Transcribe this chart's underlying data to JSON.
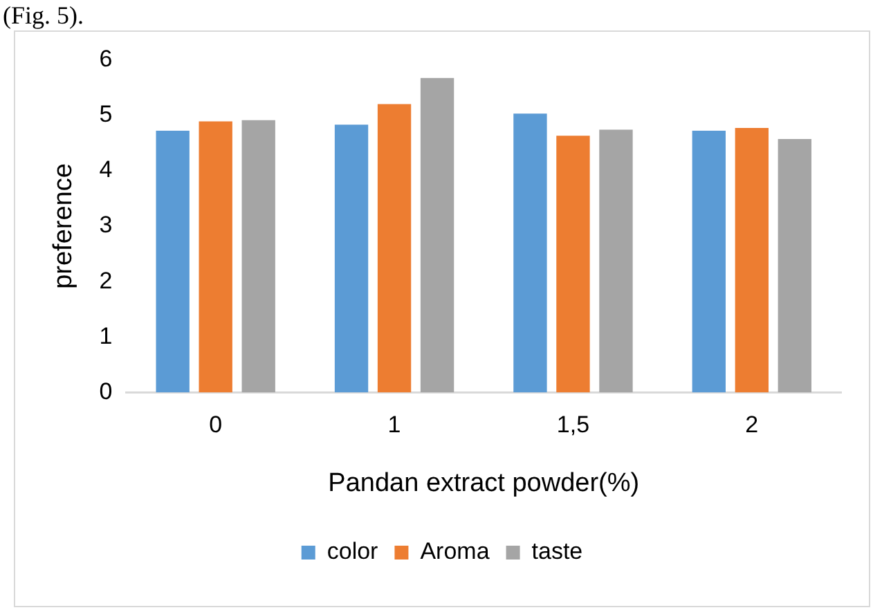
{
  "chart_data": {
    "type": "bar",
    "xlabel": "Pandan extract powder(%)",
    "ylabel": "preference",
    "categories": [
      "0",
      "1",
      "1,5",
      "2"
    ],
    "series": [
      {
        "name": "color",
        "color": "#5b9bd5",
        "values": [
          4.72,
          4.83,
          5.03,
          4.72
        ]
      },
      {
        "name": "Aroma",
        "color": "#ed7d31",
        "values": [
          4.89,
          5.2,
          4.63,
          4.77
        ]
      },
      {
        "name": "taste",
        "color": "#a5a5a5",
        "values": [
          4.91,
          5.67,
          4.74,
          4.57
        ]
      }
    ],
    "ylim": [
      0,
      6
    ],
    "yticks": [
      0,
      1,
      2,
      3,
      4,
      5,
      6
    ],
    "grid": false,
    "legend": "bottom",
    "annotations": [
      "(Fig. 5)."
    ]
  }
}
